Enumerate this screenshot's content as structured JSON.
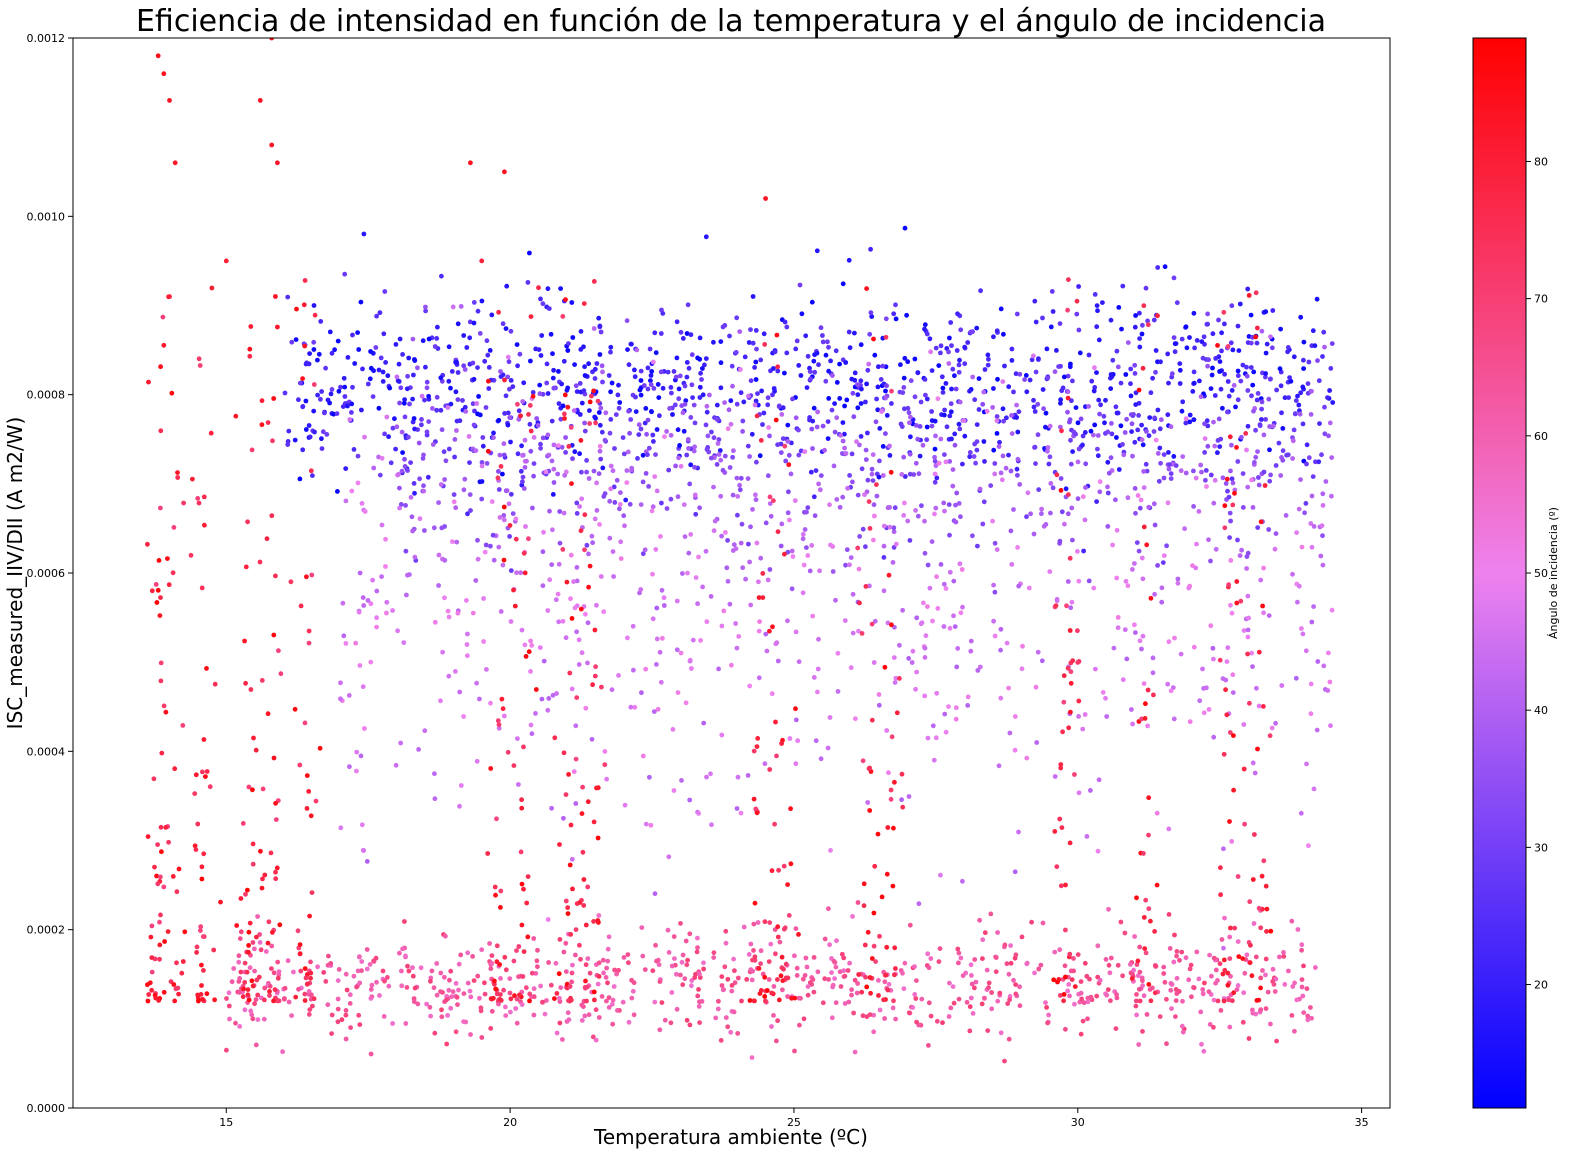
{
  "chart_data": {
    "type": "scatter",
    "title": "Eficiencia de intensidad en función de la temperatura y el ángulo de incidencia",
    "xlabel": "Temperatura ambiente (ºC)",
    "ylabel": "ISC_measured_IIV/DII (A m2/W)",
    "xlim": [
      12.3,
      35.5
    ],
    "ylim": [
      0,
      0.0012
    ],
    "x_ticks": [
      15,
      20,
      25,
      30,
      35
    ],
    "x_tick_labels": [
      "15",
      "20",
      "25",
      "30",
      "35"
    ],
    "y_ticks": [
      0,
      0.0002,
      0.0004,
      0.0006,
      0.0008,
      0.001,
      0.0012
    ],
    "y_tick_labels": [
      "0.0000",
      "0.0002",
      "0.0004",
      "0.0006",
      "0.0008",
      "0.0010",
      "0.0012"
    ],
    "grid": false,
    "colorbar": {
      "label": "Ángulo de incidencia (º)",
      "range": [
        11,
        89
      ],
      "ticks": [
        20,
        30,
        40,
        50,
        60,
        70,
        80
      ],
      "tick_labels": [
        "20",
        "30",
        "40",
        "50",
        "60",
        "70",
        "80"
      ],
      "colors": {
        "low": "#0000ff",
        "mid": "#ee82ee",
        "high": "#ff0000"
      }
    },
    "clusters": [
      {
        "name": "blue-band",
        "x_range": [
          16,
          34.5
        ],
        "y_center": 0.00081,
        "y_spread": 5e-05,
        "angle_range": [
          12,
          30
        ],
        "count": 1100
      },
      {
        "name": "purple-band",
        "x_range": [
          18,
          34.5
        ],
        "y_center": 0.00072,
        "y_spread": 6e-05,
        "angle_range": [
          28,
          42
        ],
        "count": 650
      },
      {
        "name": "violet-scatter",
        "x_range": [
          17,
          34.5
        ],
        "y_center": 0.00055,
        "y_spread": 0.00012,
        "angle_range": [
          40,
          52
        ],
        "count": 700
      },
      {
        "name": "pink-low-band",
        "x_range": [
          15,
          34.2
        ],
        "y_center": 0.00014,
        "y_spread": 3e-05,
        "angle_range": [
          55,
          70
        ],
        "count": 850
      },
      {
        "name": "red-vertical-streaks",
        "x_centers": [
          13.8,
          14.1,
          14.6,
          15.4,
          15.8,
          16.4,
          19.8,
          20.2,
          21.0,
          21.4,
          24.4,
          24.8,
          26.3,
          26.7,
          29.8,
          31.2,
          32.7,
          33.2
        ],
        "y_range": [
          0.00012,
          0.0012
        ],
        "angle_range": [
          68,
          88
        ],
        "count": 700
      }
    ],
    "points": [
      {
        "x": 13.8,
        "y": 0.00118,
        "angle": 85
      },
      {
        "x": 13.9,
        "y": 0.00116,
        "angle": 84
      },
      {
        "x": 14.0,
        "y": 0.00113,
        "angle": 83
      },
      {
        "x": 14.1,
        "y": 0.00106,
        "angle": 82
      },
      {
        "x": 15.8,
        "y": 0.0012,
        "angle": 86
      },
      {
        "x": 15.6,
        "y": 0.00113,
        "angle": 84
      },
      {
        "x": 15.8,
        "y": 0.00108,
        "angle": 83
      },
      {
        "x": 15.9,
        "y": 0.00106,
        "angle": 82
      },
      {
        "x": 19.3,
        "y": 0.00106,
        "angle": 84
      },
      {
        "x": 19.9,
        "y": 0.00105,
        "angle": 83
      },
      {
        "x": 24.5,
        "y": 0.00102,
        "angle": 83
      },
      {
        "x": 14.0,
        "y": 0.00091,
        "angle": 80
      },
      {
        "x": 15.0,
        "y": 0.00095,
        "angle": 80
      },
      {
        "x": 19.5,
        "y": 0.00095,
        "angle": 79
      },
      {
        "x": 20.5,
        "y": 0.00092,
        "angle": 78
      }
    ]
  }
}
